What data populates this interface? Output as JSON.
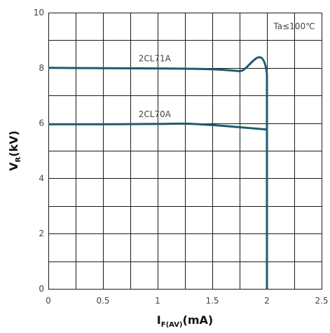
{
  "chart_data": {
    "type": "line",
    "title": "",
    "xlabel": {
      "main": "I",
      "sub": "F(AV)",
      "unit": "(mA)"
    },
    "ylabel": {
      "main": "V",
      "sub": "R",
      "unit": "(kV)"
    },
    "xlim": [
      0,
      2.5
    ],
    "ylim": [
      0,
      10
    ],
    "x_ticks": [
      0,
      0.5,
      1,
      1.5,
      2,
      2.5
    ],
    "x_tick_labels": [
      "0",
      "0.5",
      "1",
      "1.5",
      "2",
      "2.5"
    ],
    "y_ticks": [
      0,
      2,
      4,
      6,
      8,
      10
    ],
    "y_tick_labels": [
      "0",
      "2",
      "4",
      "6",
      "8",
      "10"
    ],
    "grid": true,
    "grid_x_step": 0.25,
    "grid_y_step": 1,
    "annotation": "Ta≤100℃",
    "line_color": "#1d5a70",
    "series": [
      {
        "name": "2CL71A",
        "x": [
          0,
          0.5,
          1,
          1.25,
          1.5,
          1.75,
          2,
          2,
          2
        ],
        "y": [
          8,
          7.99,
          7.98,
          7.97,
          7.95,
          7.88,
          7.78,
          0,
          0
        ]
      },
      {
        "name": "2CL70A",
        "x": [
          0,
          0.5,
          1,
          1.25,
          1.5,
          1.75,
          2
        ],
        "y": [
          5.96,
          5.96,
          5.97,
          5.98,
          5.93,
          5.85,
          5.77
        ]
      }
    ]
  }
}
